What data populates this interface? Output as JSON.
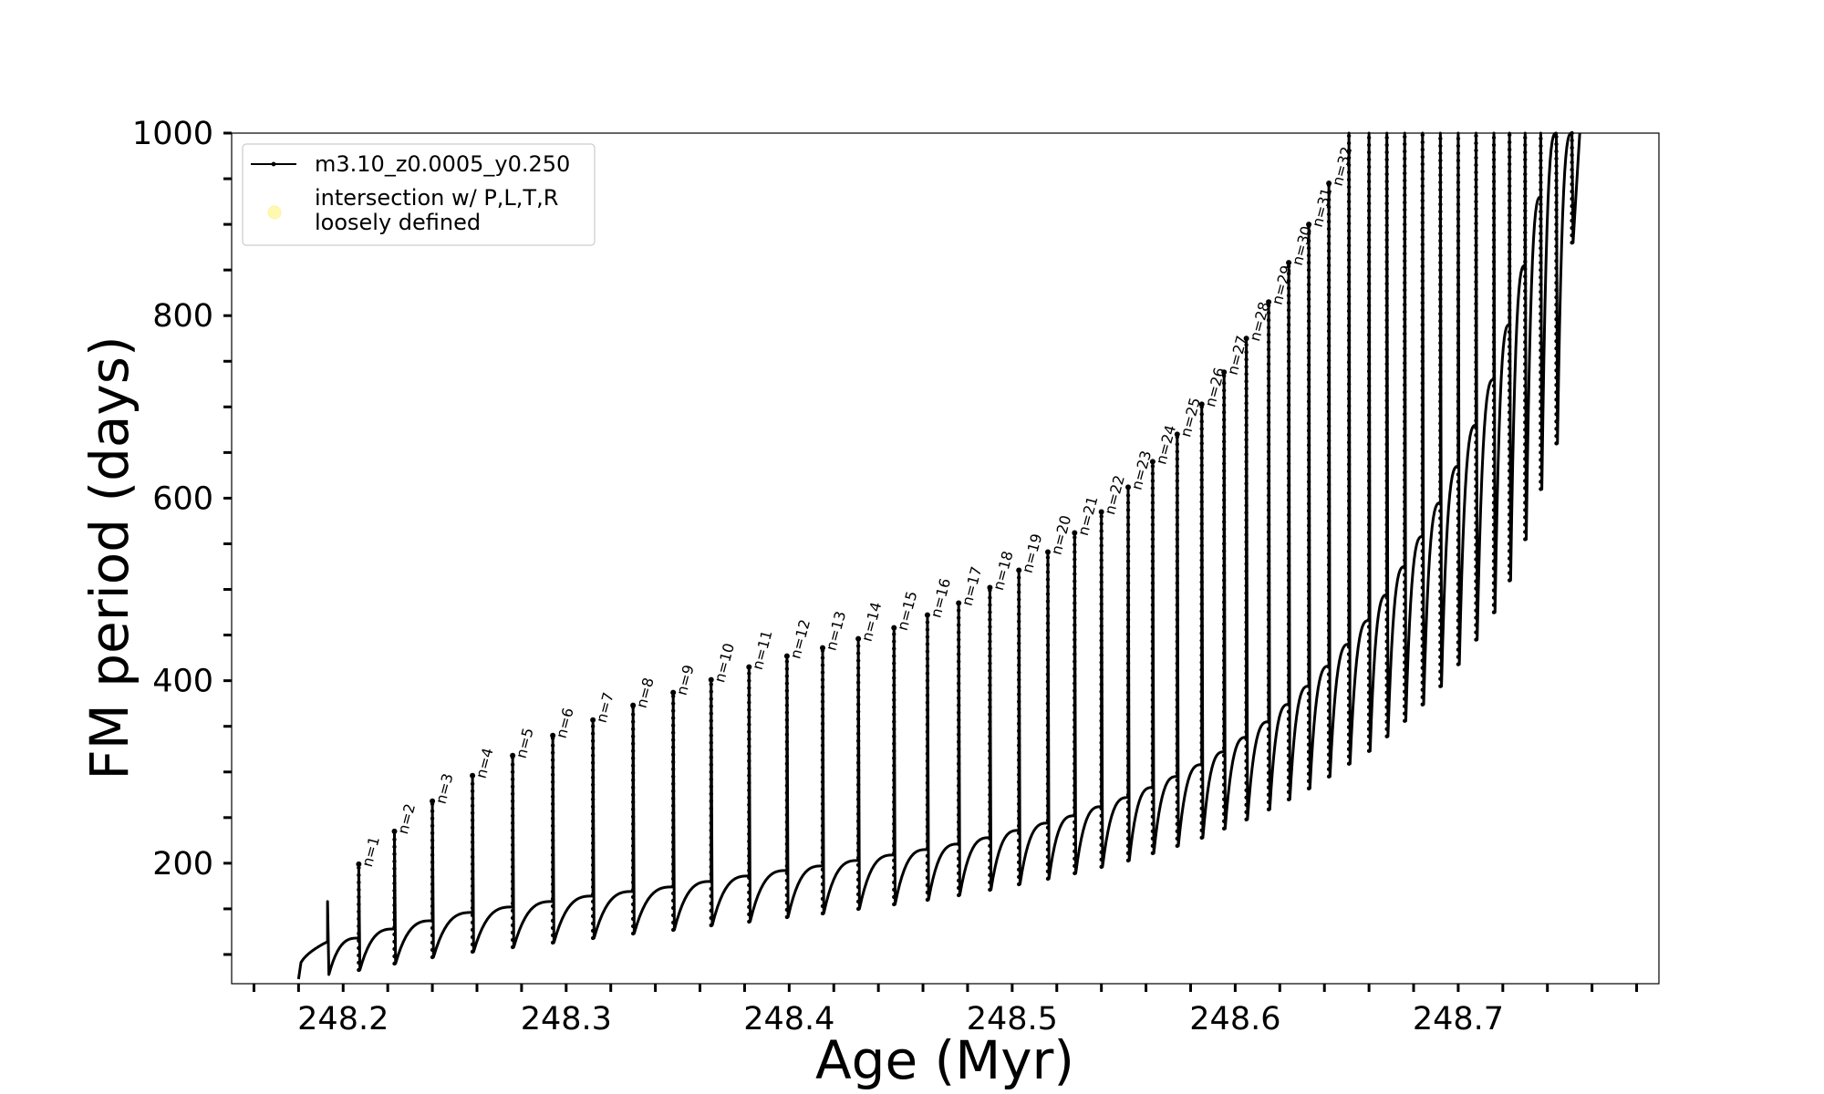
{
  "chart_data": {
    "type": "line",
    "xlabel": "Age (Myr)",
    "ylabel": "FM period (days)",
    "xlim": [
      248.15,
      248.79
    ],
    "ylim": [
      68,
      1000
    ],
    "x_ticks": [
      248.2,
      248.3,
      248.4,
      248.5,
      248.6,
      248.7
    ],
    "x_tick_labels": [
      "248.2",
      "248.3",
      "248.4",
      "248.5",
      "248.6",
      "248.7"
    ],
    "y_ticks": [
      200,
      400,
      600,
      800,
      1000
    ],
    "y_tick_labels": [
      "200",
      "400",
      "600",
      "800",
      "1000"
    ],
    "grid": false,
    "legend_position": "top-left",
    "legend": [
      {
        "label": "m3.10_z0.0005_y0.250",
        "marker": "line-with-dots",
        "color": "#000000"
      },
      {
        "label_lines": [
          "intersection w/ P,L,T,R",
          "loosely defined"
        ],
        "marker": "circle",
        "color": "#fff9b0"
      }
    ],
    "series": [
      {
        "name": "m3.10_z0.0005_y0.250",
        "color": "#000000",
        "pulse_start_x": 248.18,
        "pre_pulse_peaks": [
          {
            "x": 248.193,
            "peak": 158
          }
        ],
        "thermal_pulses": [
          {
            "n": "n=1",
            "x": 248.207,
            "peak": 199,
            "base": 118,
            "min": 83
          },
          {
            "n": "n=2",
            "x": 248.223,
            "peak": 235,
            "base": 128,
            "min": 90
          },
          {
            "n": "n=3",
            "x": 248.24,
            "peak": 268,
            "base": 137,
            "min": 97
          },
          {
            "n": "n=4",
            "x": 248.258,
            "peak": 296,
            "base": 146,
            "min": 103
          },
          {
            "n": "n=5",
            "x": 248.276,
            "peak": 318,
            "base": 152,
            "min": 108
          },
          {
            "n": "n=6",
            "x": 248.294,
            "peak": 340,
            "base": 158,
            "min": 113
          },
          {
            "n": "n=7",
            "x": 248.312,
            "peak": 357,
            "base": 164,
            "min": 118
          },
          {
            "n": "n=8",
            "x": 248.33,
            "peak": 373,
            "base": 169,
            "min": 123
          },
          {
            "n": "n=9",
            "x": 248.348,
            "peak": 387,
            "base": 174,
            "min": 127
          },
          {
            "n": "n=10",
            "x": 248.365,
            "peak": 401,
            "base": 180,
            "min": 132
          },
          {
            "n": "n=11",
            "x": 248.382,
            "peak": 415,
            "base": 186,
            "min": 136
          },
          {
            "n": "n=12",
            "x": 248.399,
            "peak": 427,
            "base": 192,
            "min": 141
          },
          {
            "n": "n=13",
            "x": 248.415,
            "peak": 436,
            "base": 197,
            "min": 145
          },
          {
            "n": "n=14",
            "x": 248.431,
            "peak": 446,
            "base": 203,
            "min": 150
          },
          {
            "n": "n=15",
            "x": 248.447,
            "peak": 458,
            "base": 209,
            "min": 155
          },
          {
            "n": "n=16",
            "x": 248.462,
            "peak": 472,
            "base": 215,
            "min": 160
          },
          {
            "n": "n=17",
            "x": 248.476,
            "peak": 485,
            "base": 221,
            "min": 165
          },
          {
            "n": "n=18",
            "x": 248.49,
            "peak": 502,
            "base": 228,
            "min": 171
          },
          {
            "n": "n=19",
            "x": 248.503,
            "peak": 521,
            "base": 236,
            "min": 177
          },
          {
            "n": "n=20",
            "x": 248.516,
            "peak": 541,
            "base": 244,
            "min": 183
          },
          {
            "n": "n=21",
            "x": 248.528,
            "peak": 562,
            "base": 252,
            "min": 189
          },
          {
            "n": "n=22",
            "x": 248.54,
            "peak": 585,
            "base": 262,
            "min": 196
          },
          {
            "n": "n=23",
            "x": 248.552,
            "peak": 612,
            "base": 272,
            "min": 203
          },
          {
            "n": "n=24",
            "x": 248.563,
            "peak": 640,
            "base": 283,
            "min": 211
          },
          {
            "n": "n=25",
            "x": 248.574,
            "peak": 670,
            "base": 295,
            "min": 219
          },
          {
            "n": "n=26",
            "x": 248.585,
            "peak": 703,
            "base": 308,
            "min": 228
          },
          {
            "n": "n=27",
            "x": 248.595,
            "peak": 738,
            "base": 322,
            "min": 238
          },
          {
            "n": "n=28",
            "x": 248.605,
            "peak": 775,
            "base": 338,
            "min": 248
          },
          {
            "n": "n=29",
            "x": 248.615,
            "peak": 815,
            "base": 355,
            "min": 259
          },
          {
            "n": "n=30",
            "x": 248.624,
            "peak": 858,
            "base": 374,
            "min": 270
          },
          {
            "n": "n=31",
            "x": 248.633,
            "peak": 900,
            "base": 394,
            "min": 282
          },
          {
            "n": "n=32",
            "x": 248.642,
            "peak": 945,
            "base": 416,
            "min": 295
          },
          {
            "n": "",
            "x": 248.651,
            "peak": 1000,
            "base": 440,
            "min": 309
          },
          {
            "n": "",
            "x": 248.66,
            "peak": 1000,
            "base": 466,
            "min": 323
          },
          {
            "n": "",
            "x": 248.668,
            "peak": 1000,
            "base": 494,
            "min": 339
          },
          {
            "n": "",
            "x": 248.676,
            "peak": 1000,
            "base": 525,
            "min": 356
          },
          {
            "n": "",
            "x": 248.684,
            "peak": 1000,
            "base": 558,
            "min": 374
          },
          {
            "n": "",
            "x": 248.692,
            "peak": 1000,
            "base": 595,
            "min": 394
          },
          {
            "n": "",
            "x": 248.7,
            "peak": 1000,
            "base": 635,
            "min": 418
          },
          {
            "n": "",
            "x": 248.708,
            "peak": 1000,
            "base": 680,
            "min": 445
          },
          {
            "n": "",
            "x": 248.716,
            "peak": 1000,
            "base": 730,
            "min": 475
          },
          {
            "n": "",
            "x": 248.723,
            "peak": 1000,
            "base": 790,
            "min": 510
          },
          {
            "n": "",
            "x": 248.73,
            "peak": 1000,
            "base": 855,
            "min": 555
          },
          {
            "n": "",
            "x": 248.737,
            "peak": 1000,
            "base": 930,
            "min": 610
          },
          {
            "n": "",
            "x": 248.744,
            "peak": 1000,
            "base": 1000,
            "min": 660
          },
          {
            "n": "",
            "x": 248.751,
            "peak": 1000,
            "base": 1000,
            "min": 880
          }
        ]
      }
    ]
  }
}
